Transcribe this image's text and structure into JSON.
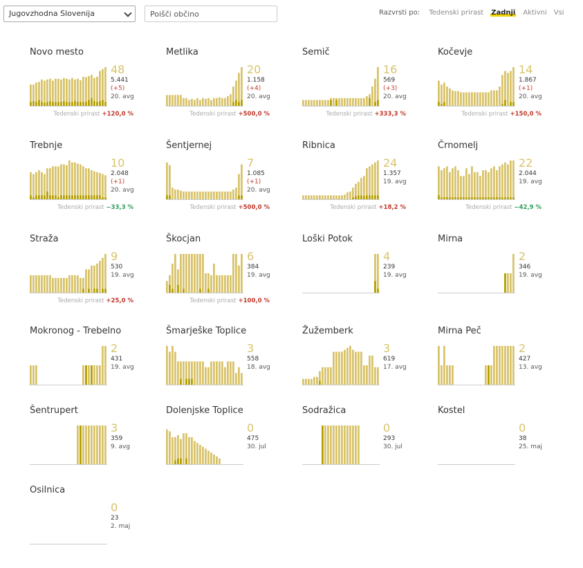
{
  "filters": {
    "region_value": "Jugovzhodna Slovenija",
    "search_placeholder": "Poišči občino",
    "sort_label": "Razvrsti po:",
    "sort_options": [
      {
        "label": "Tedenski prirast",
        "active": false
      },
      {
        "label": "Zadnji",
        "active": true
      },
      {
        "label": "Aktivni",
        "active": false
      },
      {
        "label": "Vsi",
        "active": false
      }
    ]
  },
  "colors": {
    "bar": "#d8c36a",
    "bar_dark": "#b5a000",
    "base": "#cccccc",
    "growth_up": "#c0392b",
    "growth_down": "#2e9e5b"
  },
  "growth_label": "Tedenski prirast",
  "municipalities": [
    {
      "name": "Novo mesto",
      "value": "48",
      "total": "5.441",
      "diff": "(+5)",
      "date": "20. avg",
      "growth": "+120,0 %",
      "dir": "up",
      "bars": [
        0.55,
        0.55,
        0.6,
        0.62,
        0.68,
        0.65,
        0.68,
        0.7,
        0.65,
        0.7,
        0.7,
        0.68,
        0.72,
        0.7,
        0.68,
        0.72,
        0.68,
        0.7,
        0.66,
        0.75,
        0.74,
        0.77,
        0.8,
        0.72,
        0.75,
        0.9,
        0.95,
        1.0
      ],
      "dark": [
        0.1,
        0.12,
        0.1,
        0.15,
        0.1,
        0.08,
        0.1,
        0.12,
        0.1,
        0.1,
        0.1,
        0.1,
        0.12,
        0.1,
        0.1,
        0.1,
        0.12,
        0.1,
        0.1,
        0.1,
        0.1,
        0.15,
        0.2,
        0.12,
        0.1,
        0.12,
        0.15,
        0.1
      ]
    },
    {
      "name": "Metlika",
      "value": "20",
      "total": "1.158",
      "diff": "(+4)",
      "date": "20. avg",
      "growth": "+500,0 %",
      "dir": "up",
      "bars": [
        0.28,
        0.28,
        0.28,
        0.28,
        0.28,
        0.28,
        0.2,
        0.2,
        0.15,
        0.18,
        0.15,
        0.2,
        0.15,
        0.2,
        0.18,
        0.2,
        0.15,
        0.2,
        0.2,
        0.22,
        0.2,
        0.2,
        0.25,
        0.3,
        0.5,
        0.65,
        0.85,
        1.0
      ],
      "dark": [
        0,
        0,
        0,
        0,
        0,
        0,
        0,
        0,
        0,
        0,
        0,
        0,
        0,
        0,
        0,
        0,
        0,
        0,
        0,
        0,
        0,
        0,
        0,
        0,
        0.1,
        0.15,
        0.1,
        0.15
      ]
    },
    {
      "name": "Semič",
      "value": "16",
      "total": "569",
      "diff": "(+3)",
      "date": "20. avg",
      "growth": "+333,3 %",
      "dir": "up",
      "bars": [
        0.15,
        0.15,
        0.15,
        0.15,
        0.15,
        0.15,
        0.15,
        0.15,
        0.15,
        0.15,
        0.2,
        0.2,
        0.2,
        0.2,
        0.2,
        0.2,
        0.2,
        0.2,
        0.2,
        0.2,
        0.2,
        0.2,
        0.2,
        0.25,
        0.3,
        0.5,
        0.7,
        1.0
      ],
      "dark": [
        0,
        0,
        0,
        0,
        0,
        0,
        0,
        0,
        0,
        0,
        0.15,
        0,
        0.15,
        0,
        0,
        0,
        0,
        0,
        0,
        0,
        0,
        0,
        0,
        0,
        0.2,
        0,
        0.1,
        0.15
      ]
    },
    {
      "name": "Kočevje",
      "value": "14",
      "total": "1.867",
      "diff": "(+1)",
      "date": "20. avg",
      "growth": "+150,0 %",
      "dir": "up",
      "bars": [
        0.65,
        0.55,
        0.6,
        0.5,
        0.45,
        0.4,
        0.38,
        0.38,
        0.35,
        0.35,
        0.35,
        0.35,
        0.35,
        0.35,
        0.35,
        0.35,
        0.35,
        0.35,
        0.35,
        0.4,
        0.4,
        0.4,
        0.5,
        0.8,
        0.9,
        0.85,
        0.9,
        1.0
      ],
      "dark": [
        0.1,
        0.05,
        0.1,
        0,
        0,
        0,
        0,
        0,
        0,
        0,
        0,
        0,
        0,
        0,
        0,
        0,
        0,
        0,
        0,
        0,
        0,
        0,
        0,
        0.05,
        0.15,
        0,
        0.1,
        0.1
      ]
    },
    {
      "name": "Trebnje",
      "value": "10",
      "total": "2.048",
      "diff": "(+1)",
      "date": "20. avg",
      "growth": "−33,3 %",
      "dir": "down",
      "bars": [
        0.7,
        0.65,
        0.7,
        0.75,
        0.7,
        0.65,
        0.8,
        0.8,
        0.85,
        0.85,
        0.85,
        0.9,
        0.9,
        0.88,
        1.0,
        0.95,
        0.95,
        0.92,
        0.9,
        0.85,
        0.8,
        0.8,
        0.75,
        0.72,
        0.7,
        0.68,
        0.65,
        0.62
      ],
      "dark": [
        0.1,
        0.05,
        0.1,
        0.1,
        0.1,
        0.1,
        0.2,
        0.1,
        0.1,
        0.1,
        0.05,
        0.1,
        0.1,
        0.1,
        0.1,
        0.1,
        0.1,
        0.1,
        0.1,
        0.1,
        0.1,
        0.1,
        0.1,
        0.1,
        0.1,
        0.1,
        0.05,
        0.05
      ]
    },
    {
      "name": "Šentjernej",
      "value": "7",
      "total": "1.085",
      "diff": "(+1)",
      "date": "20. avg",
      "growth": "+500,0 %",
      "dir": "up",
      "bars": [
        0.95,
        0.88,
        0.3,
        0.25,
        0.25,
        0.22,
        0.2,
        0.2,
        0.2,
        0.2,
        0.2,
        0.2,
        0.2,
        0.2,
        0.2,
        0.2,
        0.2,
        0.2,
        0.2,
        0.2,
        0.2,
        0.2,
        0.2,
        0.2,
        0.25,
        0.3,
        0.65,
        0.9
      ],
      "dark": [
        0.1,
        0.1,
        0,
        0,
        0,
        0,
        0,
        0,
        0,
        0,
        0,
        0,
        0,
        0,
        0,
        0,
        0,
        0,
        0,
        0,
        0,
        0,
        0,
        0,
        0,
        0,
        0.1,
        0.1
      ]
    },
    {
      "name": "Ribnica",
      "value": "24",
      "total": "1.357",
      "diff": "",
      "date": "19. avg",
      "growth": "+18,2 %",
      "dir": "up",
      "bars": [
        0.1,
        0.1,
        0.1,
        0.1,
        0.1,
        0.1,
        0.1,
        0.1,
        0.1,
        0.1,
        0.1,
        0.1,
        0.1,
        0.1,
        0.1,
        0.12,
        0.18,
        0.2,
        0.3,
        0.4,
        0.45,
        0.55,
        0.6,
        0.8,
        0.85,
        0.9,
        0.95,
        1.0
      ],
      "dark": [
        0,
        0,
        0,
        0,
        0,
        0,
        0,
        0,
        0,
        0,
        0,
        0,
        0,
        0,
        0,
        0,
        0,
        0,
        0.05,
        0.08,
        0.1,
        0.1,
        0.08,
        0.1,
        0.1,
        0.1,
        0.1,
        0.1
      ]
    },
    {
      "name": "Črnomelj",
      "value": "22",
      "total": "2.044",
      "diff": "",
      "date": "19. avg",
      "growth": "−42,9 %",
      "dir": "down",
      "bars": [
        0.85,
        0.75,
        0.8,
        0.85,
        0.7,
        0.8,
        0.85,
        0.75,
        0.6,
        0.6,
        0.8,
        0.65,
        0.85,
        0.7,
        0.7,
        0.6,
        0.75,
        0.75,
        0.7,
        0.8,
        0.85,
        0.75,
        0.85,
        0.9,
        0.95,
        0.9,
        1.0,
        1.0
      ],
      "dark": [
        0.1,
        0.05,
        0.05,
        0.05,
        0.05,
        0.05,
        0.05,
        0.05,
        0.05,
        0.05,
        0.05,
        0.05,
        0.05,
        0.05,
        0.05,
        0.05,
        0.05,
        0.05,
        0.05,
        0.05,
        0.05,
        0.05,
        0.05,
        0.05,
        0.05,
        0.05,
        0.05,
        0.05
      ]
    },
    {
      "name": "Straža",
      "value": "9",
      "total": "530",
      "diff": "",
      "date": "19. avg",
      "growth": "+25,0 %",
      "dir": "up",
      "bars": [
        0.45,
        0.45,
        0.45,
        0.45,
        0.45,
        0.45,
        0.45,
        0.45,
        0.38,
        0.38,
        0.38,
        0.38,
        0.38,
        0.38,
        0.45,
        0.45,
        0.45,
        0.45,
        0.38,
        0.38,
        0.6,
        0.6,
        0.7,
        0.7,
        0.75,
        0.82,
        0.9,
        1.0
      ],
      "dark": [
        0,
        0,
        0,
        0,
        0,
        0,
        0,
        0,
        0,
        0,
        0,
        0,
        0,
        0,
        0,
        0,
        0,
        0,
        0,
        0.1,
        0,
        0.1,
        0,
        0.1,
        0.1,
        0,
        0.1,
        0.1
      ]
    },
    {
      "name": "Škocjan",
      "value": "6",
      "total": "384",
      "diff": "",
      "date": "19. avg",
      "growth": "+100,0 %",
      "dir": "up",
      "bars": [
        0.3,
        0.45,
        0.75,
        1.0,
        0.6,
        1.0,
        1.0,
        1.0,
        1.0,
        1.0,
        1.0,
        1.0,
        1.0,
        1.0,
        0.5,
        0.5,
        0.45,
        0.75,
        0.45,
        0.45,
        0.45,
        0.45,
        0.45,
        0.45,
        1.0,
        1.0,
        0.7,
        1.0
      ],
      "dark": [
        0,
        0.2,
        0.1,
        0,
        0.2,
        0,
        0.1,
        0,
        0,
        0,
        0,
        0,
        0.1,
        0,
        0,
        0.1,
        0,
        0,
        0,
        0,
        0,
        0,
        0,
        0,
        0,
        0,
        0,
        0
      ]
    },
    {
      "name": "Loški Potok",
      "value": "4",
      "total": "239",
      "diff": "",
      "date": "19. avg",
      "growth": "",
      "dir": "up",
      "bars": [
        0,
        0,
        0,
        0,
        0,
        0,
        0,
        0,
        0,
        0,
        0,
        0,
        0,
        0,
        0,
        0,
        0,
        0,
        0,
        0,
        0,
        0,
        0,
        0,
        0,
        0,
        1.0,
        1.0
      ],
      "dark": [
        0,
        0,
        0,
        0,
        0,
        0,
        0,
        0,
        0,
        0,
        0,
        0,
        0,
        0,
        0,
        0,
        0,
        0,
        0,
        0,
        0,
        0,
        0,
        0,
        0,
        0,
        0.3,
        0.1
      ]
    },
    {
      "name": "Mirna",
      "value": "2",
      "total": "346",
      "diff": "",
      "date": "19. avg",
      "growth": "",
      "dir": "up",
      "bars": [
        0,
        0,
        0,
        0,
        0,
        0,
        0,
        0,
        0,
        0,
        0,
        0,
        0,
        0,
        0,
        0,
        0,
        0,
        0,
        0,
        0,
        0,
        0,
        0,
        0.5,
        0.5,
        0.5,
        1.0
      ],
      "dark": [
        0,
        0,
        0,
        0,
        0,
        0,
        0,
        0,
        0,
        0,
        0,
        0,
        0,
        0,
        0,
        0,
        0,
        0,
        0,
        0,
        0,
        0,
        0,
        0,
        0.5,
        0,
        0,
        0
      ]
    },
    {
      "name": "Mokronog - Trebelno",
      "value": "2",
      "total": "431",
      "diff": "",
      "date": "19. avg",
      "growth": "",
      "dir": "up",
      "bars": [
        0.5,
        0.5,
        0.5,
        0,
        0,
        0,
        0,
        0,
        0,
        0,
        0,
        0,
        0,
        0,
        0,
        0,
        0,
        0,
        0,
        0.5,
        0.5,
        0.5,
        0.5,
        0.5,
        0.5,
        0.5,
        1.0,
        1.0
      ],
      "dark": [
        0,
        0,
        0,
        0,
        0,
        0,
        0,
        0,
        0,
        0,
        0,
        0,
        0,
        0,
        0,
        0,
        0,
        0,
        0,
        0,
        0.5,
        0,
        0.5,
        0,
        0,
        0,
        0,
        0
      ]
    },
    {
      "name": "Šmarješke Toplice",
      "value": "3",
      "total": "558",
      "diff": "",
      "date": "18. avg",
      "growth": "",
      "dir": "up",
      "bars": [
        1.0,
        0.85,
        1.0,
        0.85,
        0.6,
        0.6,
        0.6,
        0.6,
        0.6,
        0.6,
        0.6,
        0.6,
        0.6,
        0.6,
        0.45,
        0.45,
        0.6,
        0.6,
        0.6,
        0.6,
        0.6,
        0.45,
        0.6,
        0.6,
        0.6,
        0.3,
        0.45,
        0.3
      ],
      "dark": [
        0,
        0,
        0,
        0,
        0,
        0.15,
        0,
        0.15,
        0.15,
        0.15,
        0,
        0,
        0,
        0,
        0,
        0,
        0,
        0,
        0,
        0,
        0,
        0,
        0,
        0,
        0,
        0,
        0,
        0
      ]
    },
    {
      "name": "Žužemberk",
      "value": "3",
      "total": "619",
      "diff": "",
      "date": "17. avg",
      "growth": "",
      "dir": "up",
      "bars": [
        0.15,
        0.15,
        0.15,
        0.15,
        0.2,
        0.2,
        0.35,
        0.45,
        0.45,
        0.45,
        0.45,
        0.85,
        0.85,
        0.85,
        0.85,
        0.9,
        0.95,
        1.0,
        0.9,
        0.85,
        0.85,
        0.85,
        0.5,
        0.5,
        0.75,
        0.75,
        0.45,
        0.45
      ],
      "dark": [
        0,
        0,
        0,
        0,
        0,
        0,
        0.1,
        0,
        0,
        0,
        0,
        0,
        0,
        0,
        0,
        0,
        0,
        0,
        0,
        0,
        0,
        0,
        0,
        0,
        0,
        0,
        0,
        0
      ]
    },
    {
      "name": "Mirna Peč",
      "value": "2",
      "total": "427",
      "diff": "",
      "date": "13. avg",
      "growth": "",
      "dir": "up",
      "bars": [
        1.0,
        0.5,
        1.0,
        0.5,
        0.5,
        0.5,
        0,
        0,
        0,
        0,
        0,
        0,
        0,
        0,
        0,
        0,
        0,
        0.5,
        0.5,
        0.5,
        1.0,
        1.0,
        1.0,
        1.0,
        1.0,
        1.0,
        1.0,
        1.0
      ],
      "dark": [
        0,
        0,
        0,
        0,
        0,
        0,
        0,
        0,
        0,
        0,
        0,
        0,
        0,
        0,
        0,
        0,
        0,
        0,
        0.5,
        0,
        0,
        0,
        0,
        0,
        0,
        0,
        0,
        0
      ]
    },
    {
      "name": "Šentrupert",
      "value": "3",
      "total": "359",
      "diff": "",
      "date": "9. avg",
      "growth": "",
      "dir": "up",
      "bars": [
        0,
        0,
        0,
        0,
        0,
        0,
        0,
        0,
        0,
        0,
        0,
        0,
        0,
        0,
        0,
        0,
        0,
        1.0,
        1.0,
        1.0,
        1.0,
        1.0,
        1.0,
        1.0,
        1.0,
        1.0,
        1.0,
        1.0
      ],
      "dark": [
        0,
        0,
        0,
        0,
        0,
        0,
        0,
        0,
        0,
        0,
        0,
        0,
        0,
        0,
        0,
        0,
        0,
        0,
        1.0,
        0,
        0,
        0,
        0,
        0,
        0,
        0,
        0,
        0
      ]
    },
    {
      "name": "Dolenjske Toplice",
      "value": "0",
      "total": "475",
      "diff": "",
      "date": "30. jul",
      "growth": "",
      "dir": "up",
      "bars": [
        0.9,
        0.85,
        0.7,
        0.7,
        0.75,
        0.65,
        0.8,
        0.8,
        0.7,
        0.7,
        0.6,
        0.55,
        0.5,
        0.45,
        0.4,
        0.35,
        0.3,
        0.25,
        0.2,
        0.15,
        0,
        0,
        0,
        0,
        0,
        0,
        0,
        0
      ],
      "dark": [
        0,
        0,
        0,
        0.1,
        0.15,
        0.15,
        0,
        0.15,
        0,
        0,
        0,
        0,
        0,
        0,
        0,
        0,
        0,
        0,
        0,
        0,
        0,
        0,
        0,
        0,
        0,
        0,
        0,
        0
      ]
    },
    {
      "name": "Sodražica",
      "value": "0",
      "total": "293",
      "diff": "",
      "date": "30. jul",
      "growth": "",
      "dir": "up",
      "bars": [
        0,
        0,
        0,
        0,
        0,
        0,
        0,
        1.0,
        1.0,
        1.0,
        1.0,
        1.0,
        1.0,
        1.0,
        1.0,
        1.0,
        1.0,
        1.0,
        1.0,
        1.0,
        1.0,
        0,
        0,
        0,
        0,
        0,
        0,
        0
      ],
      "dark": [
        0,
        0,
        0,
        0,
        0,
        0,
        0,
        1.0,
        0,
        0,
        0,
        0,
        0,
        0,
        0,
        0,
        0,
        0,
        0,
        0,
        0,
        0,
        0,
        0,
        0,
        0,
        0,
        0
      ]
    },
    {
      "name": "Kostel",
      "value": "0",
      "total": "38",
      "diff": "",
      "date": "25. maj",
      "growth": "",
      "dir": "up",
      "bars": [
        0,
        0,
        0,
        0,
        0,
        0,
        0,
        0,
        0,
        0,
        0,
        0,
        0,
        0,
        0,
        0,
        0,
        0,
        0,
        0,
        0,
        0,
        0,
        0,
        0,
        0,
        0,
        0
      ],
      "dark": [
        0,
        0,
        0,
        0,
        0,
        0,
        0,
        0,
        0,
        0,
        0,
        0,
        0,
        0,
        0,
        0,
        0,
        0,
        0,
        0,
        0,
        0,
        0,
        0,
        0,
        0,
        0,
        0
      ]
    },
    {
      "name": "Osilnica",
      "value": "0",
      "total": "23",
      "diff": "",
      "date": "2. maj",
      "growth": "",
      "dir": "up",
      "bars": [
        0,
        0,
        0,
        0,
        0,
        0,
        0,
        0,
        0,
        0,
        0,
        0,
        0,
        0,
        0,
        0,
        0,
        0,
        0,
        0,
        0,
        0,
        0,
        0,
        0,
        0,
        0,
        0
      ],
      "dark": [
        0,
        0,
        0,
        0,
        0,
        0,
        0,
        0,
        0,
        0,
        0,
        0,
        0,
        0,
        0,
        0,
        0,
        0,
        0,
        0,
        0,
        0,
        0,
        0,
        0,
        0,
        0,
        0
      ]
    }
  ]
}
